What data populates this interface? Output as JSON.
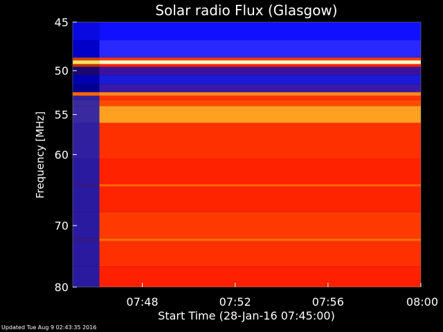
{
  "chart_data": {
    "type": "heatmap",
    "title": "Solar radio Flux (Glasgow)",
    "xlabel": "Start Time (28-Jan-16 07:45:00)",
    "ylabel": "Frequency [MHz]",
    "x_range_minutes": [
      0,
      15
    ],
    "y_range_mhz": [
      45,
      80
    ],
    "x_ticks": [
      {
        "minute": 3,
        "label": "07:48"
      },
      {
        "minute": 7,
        "label": "07:52"
      },
      {
        "minute": 11,
        "label": "07:56"
      },
      {
        "minute": 15,
        "label": "08:00"
      }
    ],
    "y_ticks": [
      {
        "mhz": 45,
        "label": "45"
      },
      {
        "mhz": 50,
        "label": "50"
      },
      {
        "mhz": 55,
        "label": "55"
      },
      {
        "mhz": 60,
        "label": "60"
      },
      {
        "mhz": 70,
        "label": "70"
      },
      {
        "mhz": 80,
        "label": "80"
      }
    ],
    "onset_minute": 1.15,
    "bands": [
      {
        "from": 45,
        "to": 46.8,
        "pre": "#0a0ae0",
        "post": "#1010ff"
      },
      {
        "from": 46.8,
        "to": 48.6,
        "pre": "#0000c8",
        "post": "#2828ff"
      },
      {
        "from": 48.6,
        "to": 48.9,
        "pre": "#d04000",
        "post": "#ff3a00"
      },
      {
        "from": 48.9,
        "to": 49.3,
        "pre": "#ffe060",
        "post": "#fff8c8"
      },
      {
        "from": 49.3,
        "to": 49.6,
        "pre": "#c03000",
        "post": "#ff2000"
      },
      {
        "from": 49.6,
        "to": 50.5,
        "pre": "#1a0870",
        "post": "#3a12a0"
      },
      {
        "from": 50.5,
        "to": 51.5,
        "pre": "#0000b0",
        "post": "#1a1ad8"
      },
      {
        "from": 51.5,
        "to": 52.4,
        "pre": "#000090",
        "post": "#3a18a8"
      },
      {
        "from": 52.4,
        "to": 52.8,
        "pre": "#ff6600",
        "post": "#ff8a20"
      },
      {
        "from": 52.8,
        "to": 53.3,
        "pre": "#3020a0",
        "post": "#ff3000"
      },
      {
        "from": 53.3,
        "to": 54.0,
        "pre": "#3a2aa0",
        "post": "#ff4a00"
      },
      {
        "from": 54.0,
        "to": 56.0,
        "pre": "#3a2aa0",
        "post": "#ffa020"
      },
      {
        "from": 56.0,
        "to": 60.5,
        "pre": "#3020a0",
        "post": "#ff3000"
      },
      {
        "from": 60.5,
        "to": 64.0,
        "pre": "#2a1aa0",
        "post": "#ff2200"
      },
      {
        "from": 64.0,
        "to": 64.3,
        "pre": "#3a1880",
        "post": "#ff6a00"
      },
      {
        "from": 64.3,
        "to": 68.0,
        "pre": "#2a1aa0",
        "post": "#ff2400"
      },
      {
        "from": 68.0,
        "to": 72.0,
        "pre": "#2a1aa0",
        "post": "#ff3a00"
      },
      {
        "from": 72.0,
        "to": 72.4,
        "pre": "#3a1880",
        "post": "#ff6a00"
      },
      {
        "from": 72.4,
        "to": 76.5,
        "pre": "#2a1aa0",
        "post": "#ff3000"
      },
      {
        "from": 76.5,
        "to": 80.0,
        "pre": "#2a1aa0",
        "post": "#ff2000"
      }
    ]
  },
  "footer_text": "Updated Tue Aug  9 02:43:35 2016"
}
